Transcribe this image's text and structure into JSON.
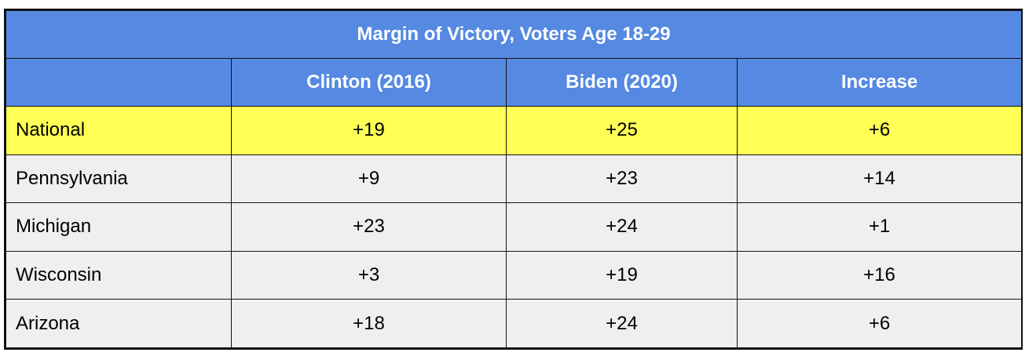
{
  "chart_data": {
    "type": "table",
    "title": "Margin of Victory, Voters Age 18-29",
    "columns": [
      "",
      "Clinton (2016)",
      "Biden (2020)",
      "Increase"
    ],
    "rows": [
      {
        "label": "National",
        "values": [
          "+19",
          "+25",
          "+6"
        ],
        "highlight": true
      },
      {
        "label": "Pennsylvania",
        "values": [
          "+9",
          "+23",
          "+14"
        ],
        "highlight": false
      },
      {
        "label": "Michigan",
        "values": [
          "+23",
          "+24",
          "+1"
        ],
        "highlight": false
      },
      {
        "label": "Wisconsin",
        "values": [
          "+3",
          "+19",
          "+16"
        ],
        "highlight": false
      },
      {
        "label": "Arizona",
        "values": [
          "+18",
          "+24",
          "+6"
        ],
        "highlight": false
      }
    ],
    "colors": {
      "header_bg": "#5589e2",
      "header_text": "#ffffff",
      "highlight_bg": "#ffff55",
      "row_bg": "#efefef",
      "border": "#111111"
    }
  }
}
